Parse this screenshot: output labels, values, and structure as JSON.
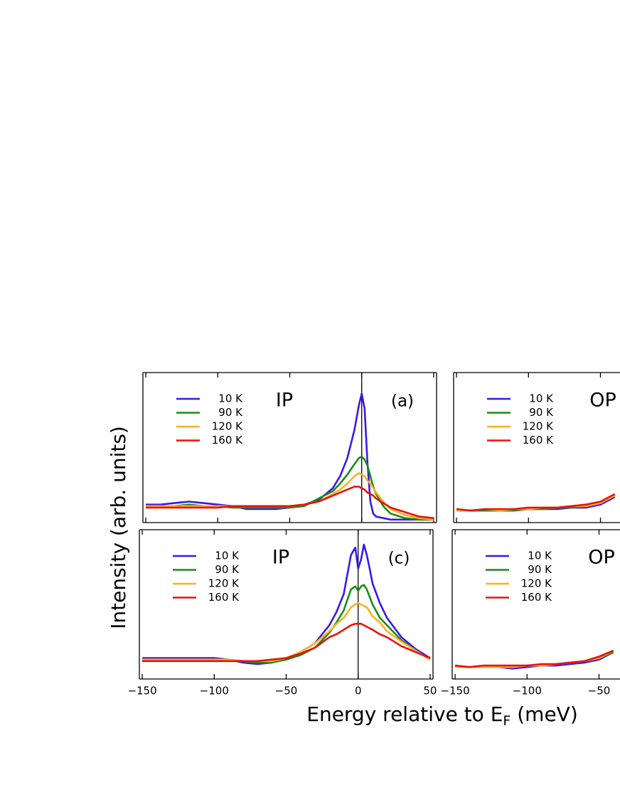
{
  "figure": {
    "ylabel": "Intensity (arb. units)",
    "xlabel": "Energy relative to E",
    "xlabel_sub": "F",
    "xlabel_unit": " (meV)"
  },
  "chart_data": [
    {
      "type": "line",
      "region": "IP",
      "panel_label": "(a)",
      "ref_x": 0,
      "tick_labels": false,
      "xlim": [
        -152,
        52
      ],
      "ylim": [
        0,
        100
      ],
      "xticks": [
        -150,
        -100,
        -50,
        0,
        50
      ],
      "x": [
        -150,
        -140,
        -130,
        -120,
        -110,
        -100,
        -90,
        -80,
        -70,
        -60,
        -50,
        -40,
        -30,
        -20,
        -15,
        -10,
        -5,
        -2,
        0,
        2,
        4,
        6,
        8,
        10,
        15,
        20,
        30,
        40,
        50
      ],
      "series": [
        {
          "name": "10 K",
          "color": "#3b18e8",
          "values": [
            12,
            12,
            13,
            14,
            13,
            12,
            11,
            9,
            9,
            9,
            10,
            12,
            15,
            23,
            31,
            43,
            62,
            78,
            86,
            76,
            40,
            14,
            6,
            4,
            3,
            2,
            2,
            2,
            2
          ]
        },
        {
          "name": "90 K",
          "color": "#1a8c1a",
          "values": [
            11,
            11,
            11,
            12,
            11,
            11,
            10,
            10,
            10,
            10,
            10,
            11,
            16,
            21,
            26,
            32,
            39,
            43,
            44,
            42,
            38,
            31,
            24,
            19,
            11,
            6,
            3,
            2,
            2
          ]
        },
        {
          "name": "120 K",
          "color": "#ffb020",
          "values": [
            11,
            11,
            11,
            11,
            11,
            11,
            11,
            11,
            11,
            11,
            11,
            12,
            14,
            19,
            22,
            26,
            31,
            33,
            32,
            31,
            28,
            26,
            23,
            20,
            14,
            9,
            5,
            3,
            2
          ]
        },
        {
          "name": "160 K",
          "color": "#e8120c",
          "values": [
            10,
            10,
            10,
            10,
            10,
            10,
            11,
            11,
            11,
            11,
            11,
            12,
            14,
            18,
            20,
            22,
            24,
            24,
            23,
            22,
            20,
            19,
            18,
            16,
            13,
            10,
            7,
            4,
            3
          ]
        }
      ]
    },
    {
      "type": "line",
      "region": "OP",
      "tick_labels": false,
      "xlim": [
        -152,
        52
      ],
      "ylim": [
        0,
        100
      ],
      "xticks": [
        -150,
        -100,
        -50
      ],
      "x": [
        -150,
        -140,
        -130,
        -120,
        -110,
        -100,
        -90,
        -80,
        -70,
        -60,
        -50,
        -40
      ],
      "series": [
        {
          "name": "10 K",
          "color": "#3b18e8",
          "values": [
            8,
            8,
            8,
            8,
            8,
            9,
            9,
            9,
            10,
            10,
            12,
            17
          ]
        },
        {
          "name": "90 K",
          "color": "#1a8c1a",
          "values": [
            8,
            8,
            8,
            8,
            8,
            9,
            9,
            10,
            10,
            11,
            13,
            18
          ]
        },
        {
          "name": "120 K",
          "color": "#ffb020",
          "values": [
            8,
            8,
            9,
            8,
            9,
            9,
            10,
            10,
            11,
            11,
            13,
            18
          ]
        },
        {
          "name": "160 K",
          "color": "#e8120c",
          "values": [
            9,
            8,
            9,
            9,
            9,
            10,
            10,
            10,
            11,
            12,
            14,
            19
          ]
        }
      ]
    },
    {
      "type": "line",
      "region": "IP",
      "panel_label": "(c)",
      "ref_x": 0,
      "tick_labels": true,
      "xlim": [
        -152,
        52
      ],
      "ylim": [
        0,
        100
      ],
      "xticks": [
        {
          "value": -150,
          "label": "−150"
        },
        {
          "value": -100,
          "label": "−100"
        },
        {
          "value": -50,
          "label": "−50"
        },
        0,
        50
      ],
      "x": [
        -150,
        -140,
        -130,
        -120,
        -110,
        -100,
        -90,
        -80,
        -70,
        -60,
        -50,
        -40,
        -30,
        -20,
        -15,
        -10,
        -5,
        -2,
        0,
        2,
        4,
        6,
        8,
        10,
        15,
        20,
        30,
        40,
        50
      ],
      "series": [
        {
          "name": "10 K",
          "color": "#3b18e8",
          "values": [
            14,
            14,
            14,
            14,
            14,
            14,
            13,
            11,
            10,
            11,
            14,
            18,
            24,
            36,
            45,
            57,
            83,
            88,
            74,
            80,
            90,
            83,
            74,
            64,
            51,
            41,
            28,
            20,
            14
          ]
        },
        {
          "name": "90 K",
          "color": "#1a8c1a",
          "values": [
            13,
            13,
            13,
            13,
            13,
            13,
            13,
            12,
            11,
            11,
            13,
            16,
            21,
            31,
            38,
            46,
            60,
            62,
            59,
            62,
            63,
            60,
            55,
            50,
            41,
            36,
            26,
            19,
            13
          ]
        },
        {
          "name": "120 K",
          "color": "#ffb020",
          "values": [
            13,
            13,
            13,
            13,
            13,
            13,
            13,
            12,
            12,
            12,
            14,
            18,
            24,
            32,
            37,
            41,
            48,
            50,
            51,
            50,
            49,
            48,
            45,
            42,
            38,
            32,
            25,
            19,
            13
          ]
        },
        {
          "name": "160 K",
          "color": "#e8120c",
          "values": [
            12,
            12,
            12,
            12,
            12,
            12,
            12,
            12,
            12,
            13,
            14,
            17,
            21,
            28,
            30,
            33,
            36,
            37,
            37,
            37,
            36,
            35,
            34,
            33,
            30,
            28,
            22,
            18,
            14
          ]
        }
      ]
    },
    {
      "type": "line",
      "region": "OP",
      "tick_labels": true,
      "xlim": [
        -152,
        52
      ],
      "ylim": [
        0,
        100
      ],
      "xticks": [
        {
          "value": -150,
          "label": "−150"
        },
        {
          "value": -100,
          "label": "−100"
        },
        {
          "value": -50,
          "label": "−50"
        }
      ],
      "x": [
        -150,
        -140,
        -130,
        -120,
        -110,
        -100,
        -90,
        -80,
        -70,
        -60,
        -50,
        -40
      ],
      "series": [
        {
          "name": "10 K",
          "color": "#3b18e8",
          "values": [
            8,
            8,
            8,
            8,
            7,
            8,
            9,
            9,
            10,
            11,
            13,
            18
          ]
        },
        {
          "name": "90 K",
          "color": "#1a8c1a",
          "values": [
            8,
            8,
            8,
            8,
            8,
            9,
            9,
            10,
            11,
            12,
            14,
            18
          ]
        },
        {
          "name": "120 K",
          "color": "#ffb020",
          "values": [
            8,
            8,
            8,
            8,
            8,
            9,
            9,
            10,
            11,
            12,
            14,
            19
          ]
        },
        {
          "name": "160 K",
          "color": "#e8120c",
          "values": [
            9,
            8,
            9,
            9,
            9,
            9,
            10,
            10,
            11,
            12,
            15,
            19
          ]
        }
      ]
    }
  ]
}
